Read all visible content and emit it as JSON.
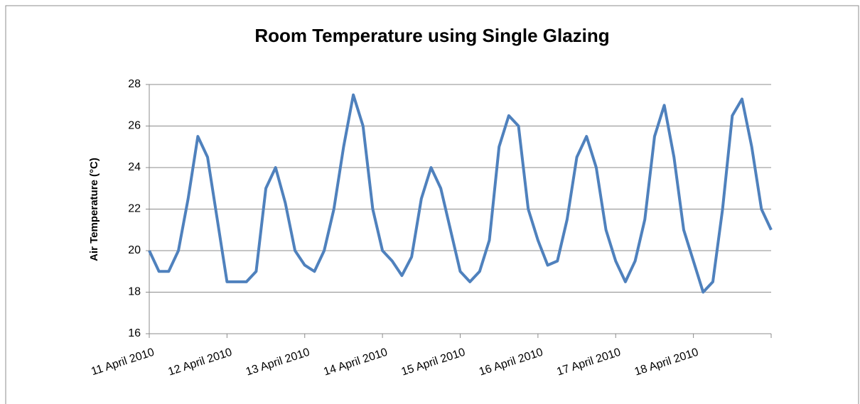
{
  "chart_data": {
    "type": "line",
    "title": "Room Temperature using Single Glazing",
    "y_label": "Air Temperature (°C)",
    "categories": [
      "11 April 2010",
      null,
      null,
      null,
      null,
      null,
      null,
      null,
      "12 April 2010",
      null,
      null,
      null,
      null,
      null,
      null,
      null,
      "13 April 2010",
      null,
      null,
      null,
      null,
      null,
      null,
      null,
      "14 April 2010",
      null,
      null,
      null,
      null,
      null,
      null,
      null,
      "15 April 2010",
      null,
      null,
      null,
      null,
      null,
      null,
      null,
      "16 April 2010",
      null,
      null,
      null,
      null,
      null,
      null,
      null,
      "17 April 2010",
      null,
      null,
      null,
      null,
      null,
      null,
      null,
      "18 April 2010",
      null,
      null,
      null,
      null,
      null,
      null,
      null,
      null
    ],
    "values": [
      20,
      19,
      19,
      20,
      22.5,
      25.5,
      24.5,
      21.5,
      18.5,
      18.5,
      18.5,
      19,
      23,
      24,
      22.3,
      20,
      19.3,
      19,
      20,
      22,
      25,
      27.5,
      26,
      22,
      20,
      19.5,
      18.8,
      19.7,
      22.5,
      24,
      23,
      21,
      19,
      18.5,
      19,
      20.5,
      25,
      26.5,
      26,
      22,
      20.5,
      19.3,
      19.5,
      21.5,
      24.5,
      25.5,
      24,
      21,
      19.5,
      18.5,
      19.5,
      21.5,
      25.5,
      27,
      24.5,
      21,
      19.5,
      18,
      18.5,
      22,
      26.5,
      27.3,
      25,
      22,
      21
    ],
    "color": "#4f81bd",
    "ylim": [
      16,
      28
    ],
    "yticks": [
      16,
      18,
      20,
      22,
      24,
      26,
      28
    ],
    "grid": true
  }
}
